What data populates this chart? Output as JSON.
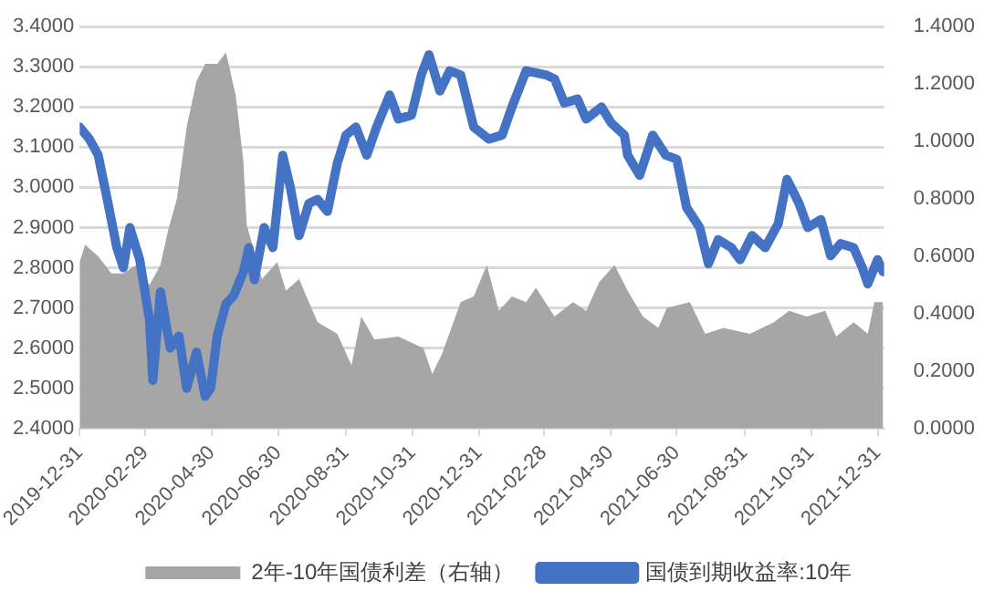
{
  "chart_data": {
    "type": "line",
    "x": [
      "2019-12-31",
      "2020-01-09",
      "2020-01-17",
      "2020-01-26",
      "2020-02-03",
      "2020-02-09",
      "2020-02-15",
      "2020-02-24",
      "2020-03-04",
      "2020-03-07",
      "2020-03-14",
      "2020-03-23",
      "2020-03-31",
      "2020-04-07",
      "2020-04-16",
      "2020-04-24",
      "2020-04-29",
      "2020-05-05",
      "2020-05-13",
      "2020-05-20",
      "2020-05-29",
      "2020-06-03",
      "2020-06-08",
      "2020-06-17",
      "2020-06-25",
      "2020-07-04",
      "2020-07-11",
      "2020-07-19",
      "2020-07-28",
      "2020-08-05",
      "2020-08-14",
      "2020-08-23",
      "2020-08-31",
      "2020-09-09",
      "2020-09-19",
      "2020-09-28",
      "2020-10-10",
      "2020-10-18",
      "2020-10-30",
      "2020-11-08",
      "2020-11-15",
      "2020-11-25",
      "2020-12-04",
      "2020-12-14",
      "2020-12-26",
      "2021-01-09",
      "2021-01-21",
      "2021-01-30",
      "2021-02-12",
      "2021-03-02",
      "2021-03-10",
      "2021-03-19",
      "2021-03-31",
      "2021-04-08",
      "2021-04-22",
      "2021-05-01",
      "2021-05-13",
      "2021-05-16",
      "2021-05-27",
      "2021-06-08",
      "2021-06-20",
      "2021-06-30",
      "2021-07-09",
      "2021-07-21",
      "2021-07-29",
      "2021-08-07",
      "2021-08-19",
      "2021-08-27",
      "2021-09-07",
      "2021-09-19",
      "2021-10-01",
      "2021-10-09",
      "2021-10-20",
      "2021-10-28",
      "2021-11-09",
      "2021-11-18",
      "2021-11-27",
      "2021-12-09",
      "2021-12-17",
      "2021-12-22",
      "2021-12-31",
      "2022-01-05"
    ],
    "series": [
      {
        "name": "2年-10年国债利差（右轴）",
        "type": "area",
        "axis": "y2",
        "color": "#a6a6a6",
        "x": [
          "2019-12-31",
          "2020-01-05",
          "2020-01-17",
          "2020-01-29",
          "2020-02-09",
          "2020-02-21",
          "2020-03-04",
          "2020-03-14",
          "2020-03-21",
          "2020-03-29",
          "2020-04-07",
          "2020-04-16",
          "2020-04-24",
          "2020-05-05",
          "2020-05-13",
          "2020-05-22",
          "2020-05-29",
          "2020-06-01",
          "2020-06-15",
          "2020-06-29",
          "2020-07-07",
          "2020-07-19",
          "2020-07-28",
          "2020-08-05",
          "2020-08-23",
          "2020-09-05",
          "2020-09-14",
          "2020-09-26",
          "2020-10-18",
          "2020-11-10",
          "2020-11-18",
          "2020-11-27",
          "2020-12-14",
          "2020-12-26",
          "2021-01-07",
          "2021-01-18",
          "2021-01-30",
          "2021-02-12",
          "2021-02-21",
          "2021-03-10",
          "2021-03-27",
          "2021-04-08",
          "2021-04-20",
          "2021-05-04",
          "2021-05-16",
          "2021-05-30",
          "2021-06-13",
          "2021-06-21",
          "2021-07-12",
          "2021-07-26",
          "2021-08-12",
          "2021-09-05",
          "2021-09-27",
          "2021-10-11",
          "2021-10-27",
          "2021-11-13",
          "2021-11-23",
          "2021-12-09",
          "2021-12-22",
          "2021-12-28",
          "2022-01-05"
        ],
        "values": [
          0.58,
          0.64,
          0.6,
          0.54,
          0.54,
          0.57,
          0.5,
          0.57,
          0.69,
          0.8,
          1.05,
          1.21,
          1.27,
          1.27,
          1.31,
          1.16,
          0.93,
          0.71,
          0.52,
          0.58,
          0.48,
          0.52,
          0.44,
          0.37,
          0.33,
          0.22,
          0.39,
          0.31,
          0.32,
          0.28,
          0.19,
          0.26,
          0.44,
          0.46,
          0.57,
          0.41,
          0.46,
          0.44,
          0.49,
          0.39,
          0.44,
          0.41,
          0.51,
          0.57,
          0.48,
          0.39,
          0.35,
          0.42,
          0.44,
          0.33,
          0.35,
          0.33,
          0.37,
          0.41,
          0.39,
          0.41,
          0.32,
          0.37,
          0.33,
          0.44,
          0.44
        ]
      },
      {
        "name": "国债到期收益率:10年",
        "type": "line",
        "color": "#4472c4",
        "values": [
          3.15,
          3.12,
          3.08,
          2.96,
          2.85,
          2.8,
          2.9,
          2.82,
          2.67,
          2.52,
          2.74,
          2.6,
          2.63,
          2.5,
          2.59,
          2.48,
          2.5,
          2.63,
          2.71,
          2.73,
          2.79,
          2.85,
          2.77,
          2.9,
          2.85,
          3.08,
          3.0,
          2.88,
          2.96,
          2.97,
          2.94,
          3.06,
          3.13,
          3.15,
          3.08,
          3.15,
          3.23,
          3.17,
          3.18,
          3.28,
          3.33,
          3.24,
          3.29,
          3.28,
          3.15,
          3.12,
          3.13,
          3.2,
          3.29,
          3.28,
          3.27,
          3.21,
          3.22,
          3.17,
          3.2,
          3.16,
          3.13,
          3.08,
          3.03,
          3.13,
          3.08,
          3.07,
          2.95,
          2.9,
          2.81,
          2.87,
          2.85,
          2.82,
          2.88,
          2.85,
          2.91,
          3.02,
          2.96,
          2.9,
          2.92,
          2.83,
          2.86,
          2.85,
          2.8,
          2.76,
          2.82,
          2.79
        ]
      }
    ],
    "xlim": [
      "2019-12-31",
      "2022-01-06"
    ],
    "xticks": [
      "2019-12-31",
      "2020-02-29",
      "2020-04-30",
      "2020-06-30",
      "2020-08-31",
      "2020-10-31",
      "2020-12-31",
      "2021-02-28",
      "2021-04-30",
      "2021-06-30",
      "2021-08-31",
      "2021-10-31",
      "2021-12-31"
    ],
    "ylim": [
      2.4,
      3.4
    ],
    "yticks": [
      {
        "value": 2.4,
        "label": "2.4000"
      },
      {
        "value": 2.5,
        "label": "2.5000"
      },
      {
        "value": 2.6,
        "label": "2.6000"
      },
      {
        "value": 2.7,
        "label": "2.7000"
      },
      {
        "value": 2.8,
        "label": "2.8000"
      },
      {
        "value": 2.9,
        "label": "2.9000"
      },
      {
        "value": 3.0,
        "label": "3.0000"
      },
      {
        "value": 3.1,
        "label": "3.1000"
      },
      {
        "value": 3.2,
        "label": "3.2000"
      },
      {
        "value": 3.3,
        "label": "3.3000"
      },
      {
        "value": 3.4,
        "label": "3.4000"
      }
    ],
    "y2lim": [
      0,
      1.4
    ],
    "y2ticks": [
      {
        "value": 0,
        "label": "0.0000"
      },
      {
        "value": 0.2,
        "label": "0.2000"
      },
      {
        "value": 0.4,
        "label": "0.4000"
      },
      {
        "value": 0.6,
        "label": "0.6000"
      },
      {
        "value": 0.8,
        "label": "0.8000"
      },
      {
        "value": 1.0,
        "label": "1.0000"
      },
      {
        "value": 1.2,
        "label": "1.2000"
      },
      {
        "value": 1.4,
        "label": "1.4000"
      }
    ],
    "grid": "y",
    "legend": "bottom",
    "marker": "none",
    "line_style": "solid"
  }
}
